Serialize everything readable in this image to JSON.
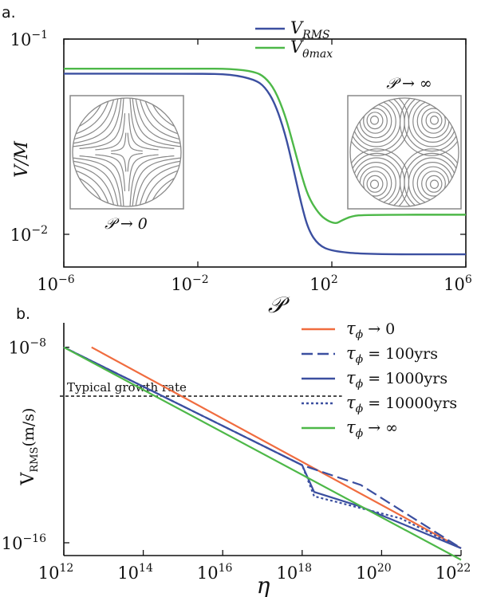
{
  "chart_data": [
    {
      "panel": "a.",
      "type": "line",
      "xscale": "log",
      "yscale": "log",
      "xlim": [
        1e-06,
        1000000.0
      ],
      "ylim": [
        0.0068,
        0.1
      ],
      "xlabel": "𝒫",
      "ylabel": "V/M",
      "xticks": [
        {
          "base": "10",
          "exp": "−6",
          "value": 1e-06
        },
        {
          "base": "10",
          "exp": "−2",
          "value": 0.01
        },
        {
          "base": "10",
          "exp": "2",
          "value": 100.0
        },
        {
          "base": "10",
          "exp": "6",
          "value": 1000000.0
        }
      ],
      "yticks": [
        {
          "base": "10",
          "exp": "−1",
          "value": 0.1
        },
        {
          "base": "10",
          "exp": "−2",
          "value": 0.01
        }
      ],
      "legend_placement": "top-center",
      "series": [
        {
          "name": "V",
          "sub": "RMS",
          "color": "#3b4fa0",
          "points": [
            [
              1e-06,
              0.0665
            ],
            [
              0.01,
              0.0665
            ],
            [
              0.1,
              0.066
            ],
            [
              0.5,
              0.062
            ],
            [
              1,
              0.057
            ],
            [
              2,
              0.047
            ],
            [
              4,
              0.033
            ],
            [
              7,
              0.022
            ],
            [
              12,
              0.0145
            ],
            [
              20,
              0.0105
            ],
            [
              40,
              0.0088
            ],
            [
              100,
              0.0082
            ],
            [
              1000,
              0.0079
            ],
            [
              1000000.0,
              0.0079
            ]
          ]
        },
        {
          "name": "V",
          "sub": "θmax",
          "color": "#4db848",
          "points": [
            [
              1e-06,
              0.0705
            ],
            [
              0.01,
              0.0705
            ],
            [
              0.1,
              0.0705
            ],
            [
              0.5,
              0.068
            ],
            [
              1,
              0.064
            ],
            [
              2,
              0.055
            ],
            [
              4,
              0.041
            ],
            [
              7,
              0.029
            ],
            [
              12,
              0.0205
            ],
            [
              20,
              0.0155
            ],
            [
              40,
              0.0128
            ],
            [
              70,
              0.0118
            ],
            [
              130,
              0.0113
            ],
            [
              200,
              0.0118
            ],
            [
              400,
              0.0124
            ],
            [
              1000,
              0.0126
            ],
            [
              1000000.0,
              0.0126
            ]
          ]
        }
      ],
      "insets": [
        {
          "label": "𝒫 → 0"
        },
        {
          "label": "𝒫 → ∞"
        }
      ]
    },
    {
      "panel": "b.",
      "type": "line",
      "xscale": "log",
      "yscale": "log",
      "xlim": [
        1000000000000.0,
        1e+22
      ],
      "ylim": [
        3e-17,
        1e-07
      ],
      "xlabel": "η",
      "ylabel": "V",
      "ylabel_sub": "RMS",
      "ylabel_rest": "(m/s)",
      "xticks": [
        {
          "base": "10",
          "exp": "12",
          "value": 1000000000000.0
        },
        {
          "base": "10",
          "exp": "14",
          "value": 100000000000000.0
        },
        {
          "base": "10",
          "exp": "16",
          "value": 1e+16
        },
        {
          "base": "10",
          "exp": "18",
          "value": 1e+18
        },
        {
          "base": "10",
          "exp": "20",
          "value": 1e+20
        },
        {
          "base": "10",
          "exp": "22",
          "value": 1e+22
        }
      ],
      "yticks": [
        {
          "base": "10",
          "exp": "−8",
          "value": 1e-08
        },
        {
          "base": "10",
          "exp": "−16",
          "value": 1e-16
        }
      ],
      "annotation": {
        "text": "Typical growth rate",
        "y": 1e-10,
        "x_range": [
          1000000000000.0,
          1e+19
        ]
      },
      "legend_placement": "top-right",
      "series": [
        {
          "name": "τ",
          "sub": "ϕ",
          "rest": " → 0",
          "color": "#f06c3f",
          "dash": "solid",
          "points": [
            [
              5000000000000.0,
              1e-08
            ],
            [
              1e+22,
              6e-17
            ]
          ]
        },
        {
          "name": "τ",
          "sub": "ϕ",
          "rest": " = 100yrs",
          "color": "#3b4fa0",
          "dash": "long",
          "points": [
            [
              1000000000000.0,
              1e-08
            ],
            [
              1e+18,
              1.5e-13
            ],
            [
              3e+19,
              2.3e-14
            ],
            [
              1e+22,
              6e-17
            ]
          ]
        },
        {
          "name": "τ",
          "sub": "ϕ",
          "rest": " = 1000yrs",
          "color": "#3b4fa0",
          "dash": "solid",
          "points": [
            [
              1000000000000.0,
              1e-08
            ],
            [
              1e+18,
              1.5e-13
            ],
            [
              2e+18,
              1.2e-14
            ],
            [
              3e+19,
              3e-15
            ],
            [
              1e+22,
              6e-17
            ]
          ]
        },
        {
          "name": "τ",
          "sub": "ϕ",
          "rest": " = 10000yrs",
          "color": "#3b4fa0",
          "dash": "dot",
          "points": [
            [
              1000000000000.0,
              1e-08
            ],
            [
              1e+18,
              1.5e-13
            ],
            [
              2e+18,
              8e-15
            ],
            [
              3e+20,
              1e-15
            ],
            [
              1e+22,
              6e-17
            ]
          ]
        },
        {
          "name": "τ",
          "sub": "ϕ",
          "rest": " → ∞",
          "color": "#4db848",
          "dash": "solid",
          "points": [
            [
              1000000000000.0,
              1e-08
            ],
            [
              1e+22,
              2e-17
            ]
          ]
        }
      ]
    }
  ]
}
